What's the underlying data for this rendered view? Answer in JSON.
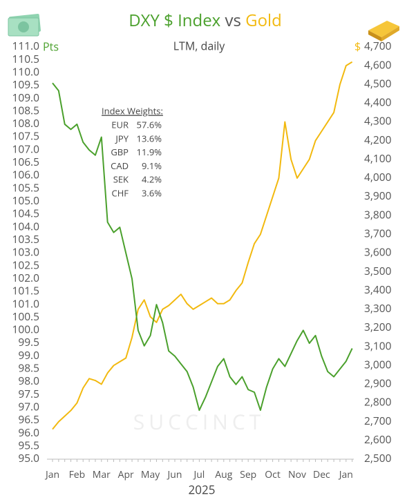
{
  "chart_data": {
    "type": "line",
    "title_joiner": "vs",
    "subtitle": "LTM, daily",
    "ylabel": "Pts",
    "y2label": "$",
    "xlabel": "2025",
    "watermark": "SUCCINCT",
    "annotation": {
      "title": "Index Weights:",
      "rows": [
        [
          "EUR",
          "57.6%"
        ],
        [
          "JPY",
          "13.6%"
        ],
        [
          "GBP",
          "11.9%"
        ],
        [
          "CAD",
          "9.1%"
        ],
        [
          "SEK",
          "4.2%"
        ],
        [
          "CHF",
          "3.6%"
        ]
      ]
    },
    "categories": [
      "Jan",
      null,
      null,
      null,
      "Feb",
      null,
      null,
      null,
      "Mar",
      null,
      null,
      null,
      "Apr",
      null,
      null,
      null,
      "May",
      null,
      null,
      null,
      "Jun",
      null,
      null,
      null,
      "Jul",
      null,
      null,
      null,
      "Aug",
      null,
      null,
      null,
      "Sep",
      null,
      null,
      null,
      "Oct",
      null,
      null,
      null,
      "Nov",
      null,
      null,
      null,
      "Dec",
      null,
      null,
      null,
      "Jan",
      null
    ],
    "series": [
      {
        "name": "DXY $ Index",
        "color": "#4aa02c",
        "values": [
          109.6,
          109.3,
          108.0,
          107.8,
          108.0,
          107.3,
          107.0,
          106.8,
          107.5,
          104.2,
          103.8,
          104.0,
          103.0,
          102.0,
          100.0,
          99.4,
          99.8,
          101.0,
          100.3,
          99.2,
          99.0,
          98.7,
          98.4,
          97.8,
          96.9,
          97.4,
          98.0,
          98.6,
          98.9,
          98.2,
          97.9,
          98.2,
          97.7,
          97.6,
          96.9,
          97.8,
          98.5,
          98.9,
          98.6,
          99.1,
          99.6,
          100.0,
          99.5,
          99.8,
          99.0,
          98.4,
          98.2,
          98.5,
          98.8,
          99.3
        ]
      },
      {
        "name": "Gold",
        "color": "#f2b90f",
        "axis": "y2",
        "values": [
          2660,
          2700,
          2730,
          2760,
          2800,
          2880,
          2930,
          2920,
          2900,
          2960,
          3000,
          3020,
          3040,
          3150,
          3300,
          3350,
          3260,
          3230,
          3300,
          3320,
          3350,
          3380,
          3330,
          3300,
          3320,
          3340,
          3360,
          3330,
          3330,
          3350,
          3400,
          3440,
          3550,
          3650,
          3700,
          3800,
          3900,
          4000,
          4300,
          4100,
          4000,
          4050,
          4100,
          4200,
          4250,
          4300,
          4350,
          4500,
          4600,
          4620
        ]
      }
    ],
    "ylim": [
      95,
      111
    ],
    "yticks": [
      {
        "value": 95,
        "label": "95.0"
      },
      {
        "value": 95.5,
        "label": "95.5"
      },
      {
        "value": 96,
        "label": "96.0"
      },
      {
        "value": 96.5,
        "label": "96.5"
      },
      {
        "value": 97,
        "label": "97.0"
      },
      {
        "value": 97.5,
        "label": "97.5"
      },
      {
        "value": 98,
        "label": "98.0"
      },
      {
        "value": 98.5,
        "label": "98.5"
      },
      {
        "value": 99,
        "label": "99.0"
      },
      {
        "value": 99.5,
        "label": "99.5"
      },
      {
        "value": 100,
        "label": "100.0"
      },
      {
        "value": 100.5,
        "label": "100.5"
      },
      {
        "value": 101,
        "label": "101.0"
      },
      {
        "value": 101.5,
        "label": "101.5"
      },
      {
        "value": 102,
        "label": "102.0"
      },
      {
        "value": 102.5,
        "label": "102.5"
      },
      {
        "value": 103,
        "label": "103.0"
      },
      {
        "value": 103.5,
        "label": "103.5"
      },
      {
        "value": 104,
        "label": "104.0"
      },
      {
        "value": 104.5,
        "label": "104.5"
      },
      {
        "value": 105,
        "label": "105.0"
      },
      {
        "value": 105.5,
        "label": "105.5"
      },
      {
        "value": 106,
        "label": "106.0"
      },
      {
        "value": 106.5,
        "label": "106.5"
      },
      {
        "value": 107,
        "label": "107.0"
      },
      {
        "value": 107.5,
        "label": "107.5"
      },
      {
        "value": 108,
        "label": "108.0"
      },
      {
        "value": 108.5,
        "label": "108.5"
      },
      {
        "value": 109,
        "label": "109.0"
      },
      {
        "value": 109.5,
        "label": "109.5"
      },
      {
        "value": 110,
        "label": "110.0"
      },
      {
        "value": 110.5,
        "label": "110.5"
      },
      {
        "value": 111,
        "label": "111.0"
      }
    ],
    "y2lim": [
      2500,
      4700
    ],
    "y2ticks": [
      {
        "value": 2500,
        "label": "2,500"
      },
      {
        "value": 2600,
        "label": "2,600"
      },
      {
        "value": 2700,
        "label": "2,700"
      },
      {
        "value": 2800,
        "label": "2,800"
      },
      {
        "value": 2900,
        "label": "2,900"
      },
      {
        "value": 3000,
        "label": "3,000"
      },
      {
        "value": 3100,
        "label": "3,100"
      },
      {
        "value": 3200,
        "label": "3,200"
      },
      {
        "value": 3300,
        "label": "3,300"
      },
      {
        "value": 3400,
        "label": "3,400"
      },
      {
        "value": 3500,
        "label": "3,500"
      },
      {
        "value": 3600,
        "label": "3,600"
      },
      {
        "value": 3700,
        "label": "3,700"
      },
      {
        "value": 3800,
        "label": "3,800"
      },
      {
        "value": 3900,
        "label": "3,900"
      },
      {
        "value": 4000,
        "label": "4,000"
      },
      {
        "value": 4100,
        "label": "4,100"
      },
      {
        "value": 4200,
        "label": "4,200"
      },
      {
        "value": 4300,
        "label": "4,300"
      },
      {
        "value": 4400,
        "label": "4,400"
      },
      {
        "value": 4500,
        "label": "4,500"
      },
      {
        "value": 4600,
        "label": "4,600"
      },
      {
        "value": 4700,
        "label": "4,700"
      }
    ]
  }
}
